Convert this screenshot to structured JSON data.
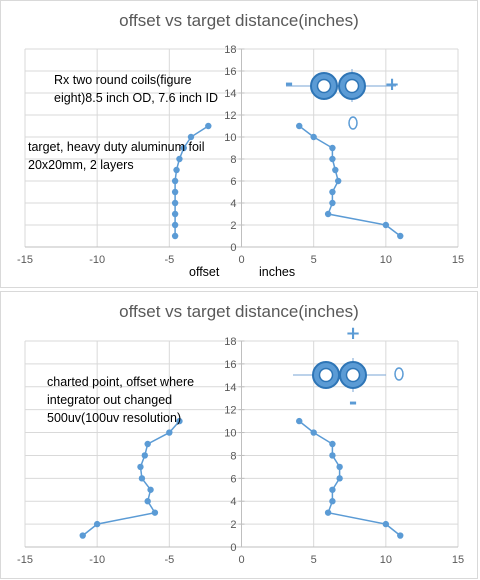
{
  "chart_data": [
    {
      "type": "scatter",
      "title": "offset vs target distance(inches)",
      "xlim": [
        -15,
        15
      ],
      "ylim": [
        0,
        18
      ],
      "x_ticks": [
        -15,
        -10,
        -5,
        0,
        5,
        10,
        15
      ],
      "y_ticks": [
        0,
        2,
        4,
        6,
        8,
        10,
        12,
        14,
        16,
        18
      ],
      "grid": true,
      "x_axis_labels": [
        "offset",
        "inches"
      ],
      "annotations": [
        "Rx two round coils(figure eight)8.5 inch OD, 7.6 inch ID",
        "target, heavy duty aluminum foil 20x20mm, 2 layers"
      ],
      "diagram_symbols": {
        "minus": "-",
        "plus": "+",
        "target": "O"
      },
      "series": [
        {
          "points": [
            [
              -2.3,
              11
            ],
            [
              -3.5,
              10
            ],
            [
              -4,
              9
            ],
            [
              -4.3,
              8
            ],
            [
              -4.5,
              7
            ],
            [
              -4.6,
              6
            ],
            [
              -4.6,
              5
            ],
            [
              -4.6,
              4
            ],
            [
              -4.6,
              3
            ],
            [
              -4.6,
              2
            ],
            [
              -4.6,
              1
            ]
          ]
        },
        {
          "points": [
            [
              4,
              11
            ],
            [
              5,
              10
            ],
            [
              6.3,
              9
            ],
            [
              6.3,
              8
            ],
            [
              6.5,
              7
            ],
            [
              6.7,
              6
            ],
            [
              6.3,
              5
            ],
            [
              6.3,
              4
            ],
            [
              6,
              3
            ],
            [
              10,
              2
            ],
            [
              11,
              1
            ]
          ]
        }
      ],
      "colors": {
        "series": "#5b9bd5",
        "grid": "#d9d9d9"
      }
    },
    {
      "type": "scatter",
      "title": "offset vs target distance(inches)",
      "xlim": [
        -15,
        15
      ],
      "ylim": [
        0,
        18
      ],
      "x_ticks": [
        -15,
        -10,
        -5,
        0,
        5,
        10,
        15
      ],
      "y_ticks": [
        0,
        2,
        4,
        6,
        8,
        10,
        12,
        14,
        16,
        18
      ],
      "grid": true,
      "x_axis_labels": [],
      "annotations": [
        "charted point, offset where integrator out changed 500uv(100uv resolution)"
      ],
      "diagram_symbols": {
        "minus": "-",
        "plus": "+",
        "target": "O"
      },
      "series": [
        {
          "points": [
            [
              -4.3,
              11
            ],
            [
              -5,
              10
            ],
            [
              -6.5,
              9
            ],
            [
              -6.7,
              8
            ],
            [
              -7,
              7
            ],
            [
              -6.9,
              6
            ],
            [
              -6.3,
              5
            ],
            [
              -6.5,
              4
            ],
            [
              -6,
              3
            ],
            [
              -10,
              2
            ],
            [
              -11,
              1
            ]
          ]
        },
        {
          "points": [
            [
              4,
              11
            ],
            [
              5,
              10
            ],
            [
              6.3,
              9
            ],
            [
              6.3,
              8
            ],
            [
              6.8,
              7
            ],
            [
              6.8,
              6
            ],
            [
              6.3,
              5
            ],
            [
              6.3,
              4
            ],
            [
              6,
              3
            ],
            [
              10,
              2
            ],
            [
              11,
              1
            ]
          ]
        }
      ],
      "colors": {
        "series": "#5b9bd5",
        "grid": "#d9d9d9"
      }
    }
  ]
}
